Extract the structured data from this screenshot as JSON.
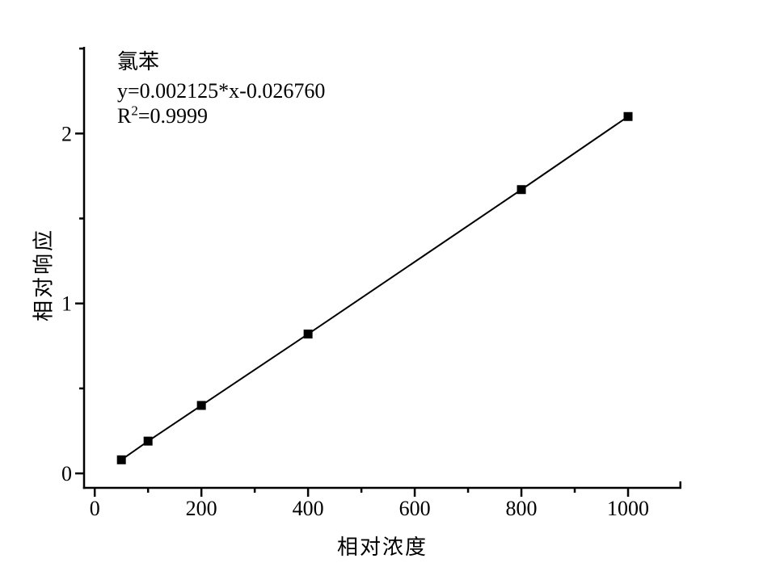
{
  "figure": {
    "background": "#ffffff",
    "ink": "#000000"
  },
  "chart_data": {
    "type": "scatter",
    "title": "氯苯",
    "annotation": {
      "compound": "氯苯",
      "equation": "y=0.002125*x-0.026760",
      "r2_base": "R",
      "r2_sup": "2",
      "r2_rest": "=0.9999"
    },
    "xlabel": "相对浓度",
    "ylabel": "相对响应",
    "x": [
      50,
      100,
      200,
      400,
      800,
      1000
    ],
    "y": [
      0.08,
      0.19,
      0.4,
      0.82,
      1.67,
      2.1
    ],
    "fit": {
      "slope": 0.002125,
      "intercept": -0.02676,
      "r_squared": 0.9999
    },
    "xlim": [
      -20,
      1100
    ],
    "ylim": [
      -0.085,
      2.51
    ],
    "xticks_major": [
      0,
      200,
      400,
      600,
      800,
      1000
    ],
    "xticks_minor": [
      100,
      300,
      500,
      700,
      900
    ],
    "yticks_major": [
      0,
      1,
      2
    ],
    "yticks_minor": [
      0.5,
      1.5,
      2.5
    ],
    "grid": false,
    "legend": false,
    "marker": "filled-square",
    "marker_size": 11,
    "line_color": "#000000",
    "marker_color": "#000000"
  }
}
